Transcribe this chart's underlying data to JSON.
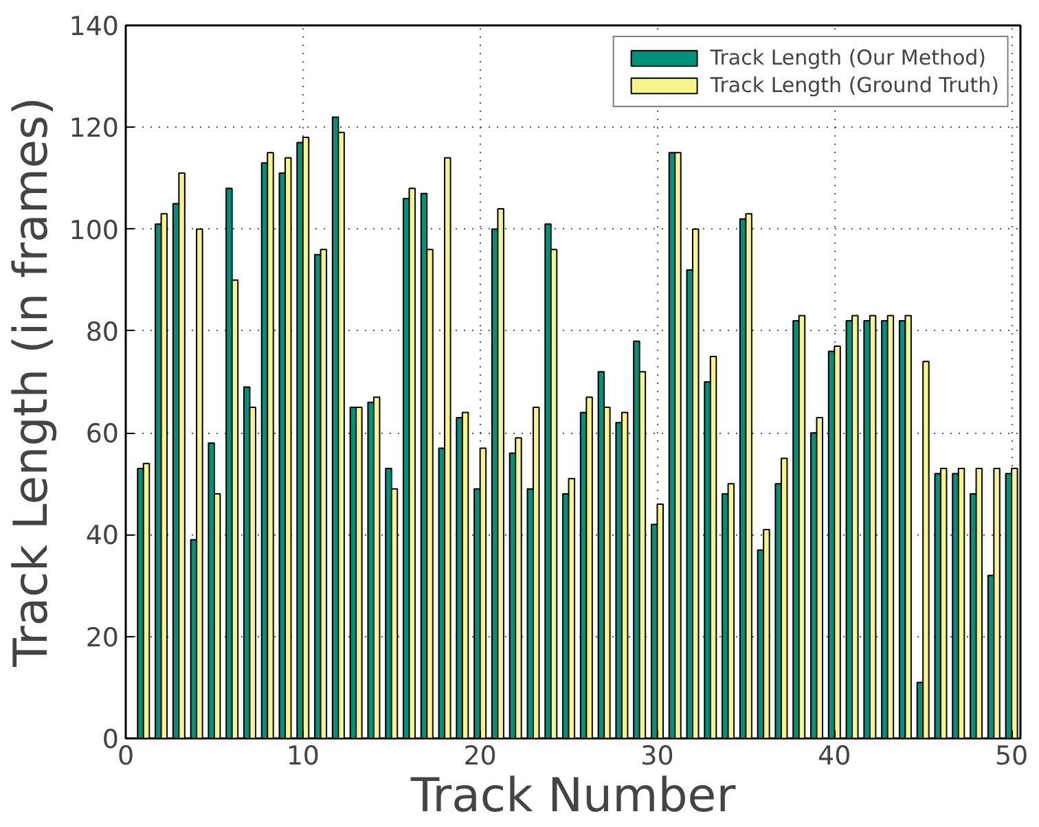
{
  "chart_data": {
    "type": "bar",
    "xlabel": "Track Number",
    "ylabel": "Track Length (in frames)",
    "x": [
      1,
      2,
      3,
      4,
      5,
      6,
      7,
      8,
      9,
      10,
      11,
      12,
      13,
      14,
      15,
      16,
      17,
      18,
      19,
      20,
      21,
      22,
      23,
      24,
      25,
      26,
      27,
      28,
      29,
      30,
      31,
      32,
      33,
      34,
      35,
      36,
      37,
      38,
      39,
      40,
      41,
      42,
      43,
      44,
      45,
      46,
      47,
      48,
      49,
      50
    ],
    "series": [
      {
        "name": "Track Length (Our Method)",
        "color": "#00917a",
        "values": [
          53,
          101,
          105,
          39,
          58,
          108,
          69,
          113,
          111,
          117,
          95,
          122,
          65,
          66,
          53,
          106,
          107,
          57,
          63,
          49,
          100,
          56,
          49,
          101,
          48,
          64,
          72,
          62,
          78,
          42,
          115,
          92,
          70,
          48,
          102,
          37,
          50,
          82,
          60,
          76,
          82,
          82,
          82,
          82,
          11,
          52,
          52,
          48,
          32,
          52
        ]
      },
      {
        "name": "Track Length (Ground Truth)",
        "color": "#f7f58a",
        "values": [
          54,
          103,
          111,
          100,
          48,
          90,
          65,
          115,
          114,
          118,
          96,
          119,
          65,
          67,
          49,
          108,
          96,
          114,
          64,
          57,
          104,
          59,
          65,
          96,
          51,
          67,
          65,
          64,
          72,
          46,
          115,
          100,
          75,
          50,
          103,
          41,
          55,
          83,
          63,
          77,
          83,
          83,
          83,
          83,
          74,
          53,
          53,
          53,
          53,
          53
        ]
      }
    ],
    "xlim": [
      0,
      50.5
    ],
    "ylim": [
      0,
      140
    ],
    "xticks": [
      0,
      10,
      20,
      30,
      40,
      50
    ],
    "yticks": [
      0,
      20,
      40,
      60,
      80,
      100,
      120,
      140
    ],
    "grid": true,
    "legend": "top right"
  }
}
